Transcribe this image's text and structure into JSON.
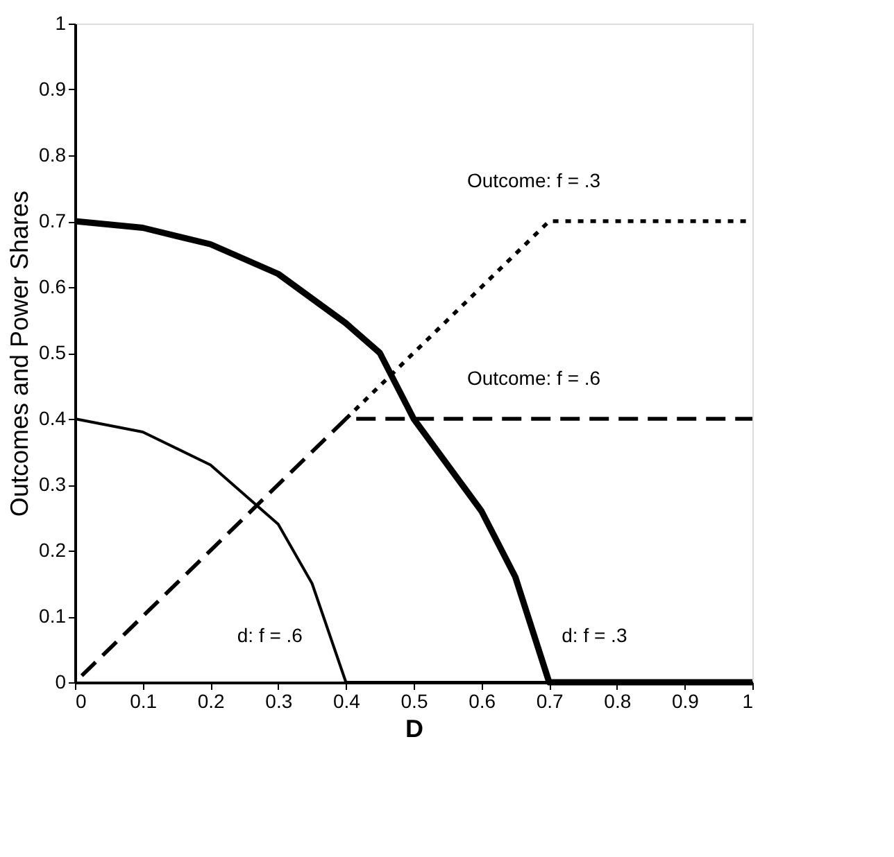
{
  "chart_data": {
    "type": "line",
    "xlabel": "D",
    "ylabel": "Outcomes and Power Shares",
    "xlim": [
      0,
      1
    ],
    "ylim": [
      0,
      1
    ],
    "xticks": [
      0,
      0.1,
      0.2,
      0.3,
      0.4,
      0.5,
      0.6,
      0.7,
      0.8,
      0.9,
      1
    ],
    "yticks": [
      0,
      0.1,
      0.2,
      0.3,
      0.4,
      0.5,
      0.6,
      0.7,
      0.8,
      0.9,
      1
    ],
    "grid": false,
    "marker": "none",
    "series": [
      {
        "color": "#000000",
        "line_style": "solid",
        "x": [
          0,
          0.1,
          0.2,
          0.3,
          0.4,
          0.45,
          0.5,
          0.55,
          0.6,
          0.65,
          0.7,
          1
        ],
        "values": [
          0.7,
          0.69,
          0.665,
          0.62,
          0.545,
          0.5,
          0.4,
          0.33,
          0.26,
          0.16,
          0,
          0
        ]
      },
      {
        "color": "#000000",
        "line_style": "solid",
        "x": [
          0,
          0.1,
          0.2,
          0.3,
          0.35,
          0.4,
          1
        ],
        "values": [
          0.4,
          0.38,
          0.33,
          0.24,
          0.15,
          0,
          0
        ]
      },
      {
        "color": "#000000",
        "line_style": "dotted",
        "x": [
          0.4,
          0.7,
          1
        ],
        "values": [
          0.4,
          0.7,
          0.7
        ]
      },
      {
        "color": "#000000",
        "line_style": "dashed",
        "x": [
          0.01,
          0.4,
          1
        ],
        "values": [
          0.01,
          0.4,
          0.4
        ]
      }
    ],
    "annotations": [
      "Outcome: f = .3",
      "Outcome: f = .6",
      "d: f = .6",
      "d:  f = .3"
    ]
  }
}
